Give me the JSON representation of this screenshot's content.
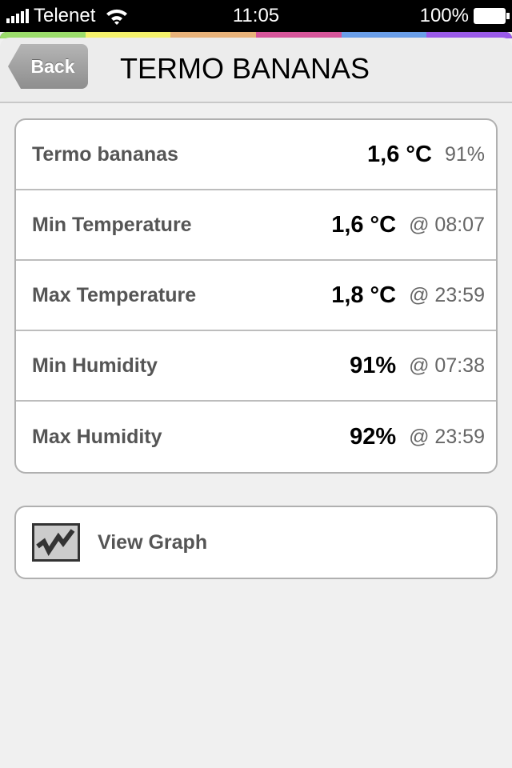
{
  "status": {
    "carrier": "Telenet",
    "time": "11:05",
    "battery": "100%"
  },
  "stripe_colors": [
    "#9bdc6b",
    "#f4f06b",
    "#e8b27a",
    "#d6559a",
    "#6a9ee8",
    "#9a5ae8"
  ],
  "nav": {
    "back_label": "Back",
    "title": "TERMO BANANAS"
  },
  "rows": [
    {
      "label": "Termo bananas",
      "value": "1,6 °C",
      "sub": "91%"
    },
    {
      "label": "Min Temperature",
      "value": "1,6 °C",
      "sub": "@ 08:07"
    },
    {
      "label": "Max Temperature",
      "value": "1,8 °C",
      "sub": "@ 23:59"
    },
    {
      "label": "Min Humidity",
      "value": "91%",
      "sub": "@ 07:38"
    },
    {
      "label": "Max Humidity",
      "value": "92%",
      "sub": "@ 23:59"
    }
  ],
  "graph": {
    "label": "View Graph",
    "icon": "line-chart-icon"
  }
}
